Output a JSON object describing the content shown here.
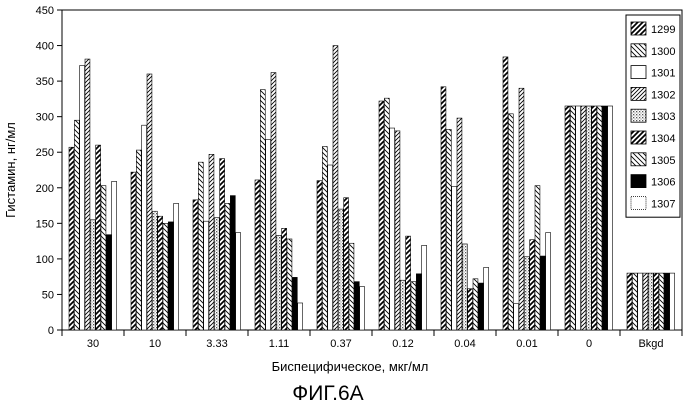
{
  "figure": {
    "caption": "ФИГ.6А"
  },
  "chart_data": {
    "type": "bar",
    "title": "",
    "xlabel": "Биспецифическое, мкг/мл",
    "ylabel": "Гистамин, нг/мл",
    "ylim": [
      0,
      450
    ],
    "yticks": [
      0,
      50,
      100,
      150,
      200,
      250,
      300,
      350,
      400,
      450
    ],
    "grid": false,
    "legend_position": "right",
    "categories": [
      "30",
      "10",
      "3.33",
      "1.11",
      "0.37",
      "0.12",
      "0.04",
      "0.01",
      "0",
      "Bkgd"
    ],
    "series": [
      {
        "name": "1299",
        "pattern": "hatch-bdiag-heavy",
        "values": [
          257,
          222,
          183,
          211,
          210,
          322,
          342,
          384,
          315,
          80
        ]
      },
      {
        "name": "1300",
        "pattern": "hatch-fdiag",
        "values": [
          295,
          253,
          236,
          338,
          258,
          326,
          282,
          304,
          315,
          80
        ]
      },
      {
        "name": "1301",
        "pattern": "empty",
        "values": [
          372,
          288,
          153,
          268,
          232,
          284,
          202,
          37,
          315,
          80
        ]
      },
      {
        "name": "1302",
        "pattern": "hatch-bdiag",
        "values": [
          381,
          360,
          247,
          362,
          400,
          280,
          298,
          340,
          315,
          80
        ]
      },
      {
        "name": "1303",
        "pattern": "dots",
        "values": [
          155,
          167,
          158,
          133,
          170,
          70,
          121,
          103,
          315,
          80
        ]
      },
      {
        "name": "1304",
        "pattern": "hatch-bdiag-heavy",
        "values": [
          260,
          160,
          241,
          143,
          186,
          132,
          58,
          127,
          315,
          80
        ]
      },
      {
        "name": "1305",
        "pattern": "hatch-fdiag",
        "values": [
          203,
          150,
          178,
          128,
          122,
          68,
          72,
          203,
          315,
          80
        ]
      },
      {
        "name": "1306",
        "pattern": "solid",
        "values": [
          134,
          152,
          189,
          74,
          68,
          79,
          66,
          104,
          315,
          80
        ]
      },
      {
        "name": "1307",
        "pattern": "empty-dotted",
        "values": [
          209,
          178,
          137,
          38,
          61,
          119,
          88,
          137,
          315,
          80
        ]
      }
    ]
  }
}
